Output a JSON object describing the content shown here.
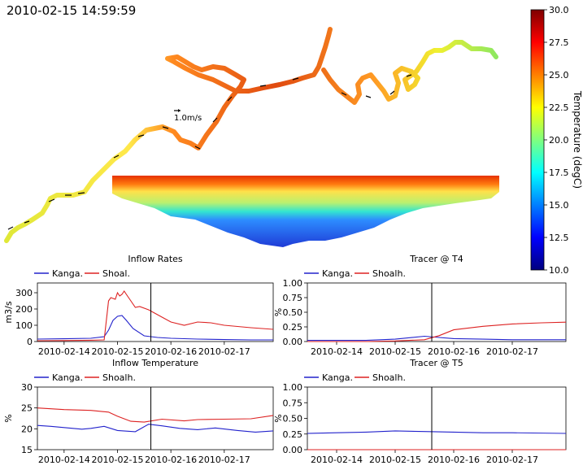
{
  "timestamp": "2010-02-15 14:59:59",
  "map": {
    "scale_label": "1.0m/s"
  },
  "colorbar": {
    "label": "Temperature (degC)",
    "ticks": [
      "10.0",
      "12.5",
      "15.0",
      "17.5",
      "20.0",
      "22.5",
      "25.0",
      "27.5",
      "30.0"
    ],
    "min": 10.0,
    "max": 30.0,
    "colormap": [
      "#00007f",
      "#0000ff",
      "#007fff",
      "#00ffff",
      "#7fff7f",
      "#ffff00",
      "#ff7f00",
      "#ff0000",
      "#7f0000"
    ]
  },
  "chart_data": [
    {
      "type": "line",
      "title": "Inflow Rates",
      "xlabel": "",
      "ylabel": "m3/s",
      "ylim": [
        0,
        360
      ],
      "yticks": [
        "0",
        "100",
        "200",
        "300"
      ],
      "xticks": [
        "2010-02-14",
        "2010-02-15",
        "2010-02-16",
        "2010-02-17"
      ],
      "xlim": [
        "2010-02-13 12:00",
        "2010-02-17 22:00"
      ],
      "vline": "2010-02-15 14:59:59",
      "legend": "top-left",
      "series": [
        {
          "name": "Kanga.",
          "color": "#2222cc",
          "x": [
            "2010-02-13 12:00",
            "2010-02-14 00:00",
            "2010-02-14 12:00",
            "2010-02-14 18:00",
            "2010-02-14 20:00",
            "2010-02-14 22:00",
            "2010-02-15 00:00",
            "2010-02-15 02:00",
            "2010-02-15 04:00",
            "2010-02-15 07:00",
            "2010-02-15 12:00",
            "2010-02-15 18:00",
            "2010-02-16 00:00",
            "2010-02-16 12:00",
            "2010-02-17 00:00",
            "2010-02-17 12:00",
            "2010-02-17 22:00"
          ],
          "values": [
            15,
            17,
            20,
            30,
            70,
            130,
            155,
            160,
            130,
            80,
            35,
            25,
            20,
            15,
            12,
            10,
            10
          ]
        },
        {
          "name": "Shoal.",
          "color": "#dd2222",
          "x": [
            "2010-02-13 12:00",
            "2010-02-14 00:00",
            "2010-02-14 12:00",
            "2010-02-14 18:00",
            "2010-02-14 20:00",
            "2010-02-14 21:00",
            "2010-02-14 23:00",
            "2010-02-15 00:00",
            "2010-02-15 01:00",
            "2010-02-15 02:00",
            "2010-02-15 03:00",
            "2010-02-15 04:00",
            "2010-02-15 06:00",
            "2010-02-15 08:00",
            "2010-02-15 10:00",
            "2010-02-15 14:00",
            "2010-02-15 20:00",
            "2010-02-16 00:00",
            "2010-02-16 06:00",
            "2010-02-16 12:00",
            "2010-02-16 18:00",
            "2010-02-17 00:00",
            "2010-02-17 12:00",
            "2010-02-17 22:00"
          ],
          "values": [
            5,
            6,
            8,
            10,
            250,
            270,
            260,
            300,
            280,
            290,
            310,
            290,
            250,
            210,
            215,
            195,
            150,
            120,
            100,
            120,
            115,
            100,
            85,
            75
          ]
        }
      ]
    },
    {
      "type": "line",
      "title": "Tracer @ T4",
      "xlabel": "",
      "ylabel": "%",
      "ylim": [
        0,
        1.0
      ],
      "yticks": [
        "0.00",
        "0.25",
        "0.50",
        "0.75",
        "1.00"
      ],
      "xticks": [
        "2010-02-14",
        "2010-02-15",
        "2010-02-16",
        "2010-02-17"
      ],
      "xlim": [
        "2010-02-13 12:00",
        "2010-02-17 22:00"
      ],
      "vline": "2010-02-15 14:59:59",
      "legend": "top-left",
      "series": [
        {
          "name": "Kanga.",
          "color": "#2222cc",
          "x": [
            "2010-02-13 12:00",
            "2010-02-14 12:00",
            "2010-02-15 00:00",
            "2010-02-15 12:00",
            "2010-02-15 18:00",
            "2010-02-16 00:00",
            "2010-02-16 12:00",
            "2010-02-17 00:00",
            "2010-02-17 22:00"
          ],
          "values": [
            0.02,
            0.02,
            0.04,
            0.09,
            0.07,
            0.05,
            0.04,
            0.03,
            0.03
          ]
        },
        {
          "name": "Shoalh.",
          "color": "#dd2222",
          "x": [
            "2010-02-13 12:00",
            "2010-02-14 12:00",
            "2010-02-15 00:00",
            "2010-02-15 12:00",
            "2010-02-15 18:00",
            "2010-02-16 00:00",
            "2010-02-16 12:00",
            "2010-02-17 00:00",
            "2010-02-17 12:00",
            "2010-02-17 22:00"
          ],
          "values": [
            0.0,
            0.0,
            0.01,
            0.03,
            0.1,
            0.2,
            0.26,
            0.3,
            0.32,
            0.33
          ]
        }
      ]
    },
    {
      "type": "line",
      "title": "Inflow Temperature",
      "xlabel": "",
      "ylabel": "%",
      "ylim": [
        15,
        30
      ],
      "yticks": [
        "15",
        "20",
        "25",
        "30"
      ],
      "xticks": [
        "2010-02-14",
        "2010-02-15",
        "2010-02-16",
        "2010-02-17"
      ],
      "xlim": [
        "2010-02-13 12:00",
        "2010-02-17 22:00"
      ],
      "vline": "2010-02-15 14:59:59",
      "legend": "top-left",
      "series": [
        {
          "name": "Kanga.",
          "color": "#2222cc",
          "x": [
            "2010-02-13 12:00",
            "2010-02-13 18:00",
            "2010-02-14 00:00",
            "2010-02-14 08:00",
            "2010-02-14 12:00",
            "2010-02-14 18:00",
            "2010-02-15 00:00",
            "2010-02-15 08:00",
            "2010-02-15 14:00",
            "2010-02-15 20:00",
            "2010-02-16 04:00",
            "2010-02-16 12:00",
            "2010-02-16 20:00",
            "2010-02-17 06:00",
            "2010-02-17 14:00",
            "2010-02-17 22:00"
          ],
          "values": [
            20.8,
            20.6,
            20.3,
            19.9,
            20.1,
            20.6,
            19.6,
            19.3,
            21.1,
            20.7,
            20.1,
            19.8,
            20.2,
            19.6,
            19.2,
            19.5
          ]
        },
        {
          "name": "Shoalh.",
          "color": "#dd2222",
          "x": [
            "2010-02-13 12:00",
            "2010-02-14 00:00",
            "2010-02-14 12:00",
            "2010-02-14 20:00",
            "2010-02-15 00:00",
            "2010-02-15 06:00",
            "2010-02-15 12:00",
            "2010-02-15 20:00",
            "2010-02-16 06:00",
            "2010-02-16 12:00",
            "2010-02-17 00:00",
            "2010-02-17 12:00",
            "2010-02-17 22:00"
          ],
          "values": [
            25.0,
            24.6,
            24.4,
            24.0,
            23.0,
            21.8,
            21.6,
            22.3,
            21.9,
            22.2,
            22.3,
            22.4,
            23.2
          ]
        }
      ]
    },
    {
      "type": "line",
      "title": "Tracer @ T5",
      "xlabel": "",
      "ylabel": "%",
      "ylim": [
        0,
        1.0
      ],
      "yticks": [
        "0.00",
        "0.25",
        "0.50",
        "0.75",
        "1.00"
      ],
      "xticks": [
        "2010-02-14",
        "2010-02-15",
        "2010-02-16",
        "2010-02-17"
      ],
      "xlim": [
        "2010-02-13 12:00",
        "2010-02-17 22:00"
      ],
      "vline": "2010-02-15 14:59:59",
      "legend": "top-left",
      "series": [
        {
          "name": "Kanga.",
          "color": "#2222cc",
          "x": [
            "2010-02-13 12:00",
            "2010-02-14 00:00",
            "2010-02-14 12:00",
            "2010-02-15 00:00",
            "2010-02-15 12:00",
            "2010-02-16 00:00",
            "2010-02-16 12:00",
            "2010-02-17 00:00",
            "2010-02-17 22:00"
          ],
          "values": [
            0.26,
            0.27,
            0.28,
            0.3,
            0.29,
            0.28,
            0.27,
            0.27,
            0.26
          ]
        },
        {
          "name": "Shoalh.",
          "color": "#dd2222",
          "x": [
            "2010-02-13 12:00",
            "2010-02-17 22:00"
          ],
          "values": [
            0.0,
            0.0
          ]
        }
      ]
    }
  ]
}
